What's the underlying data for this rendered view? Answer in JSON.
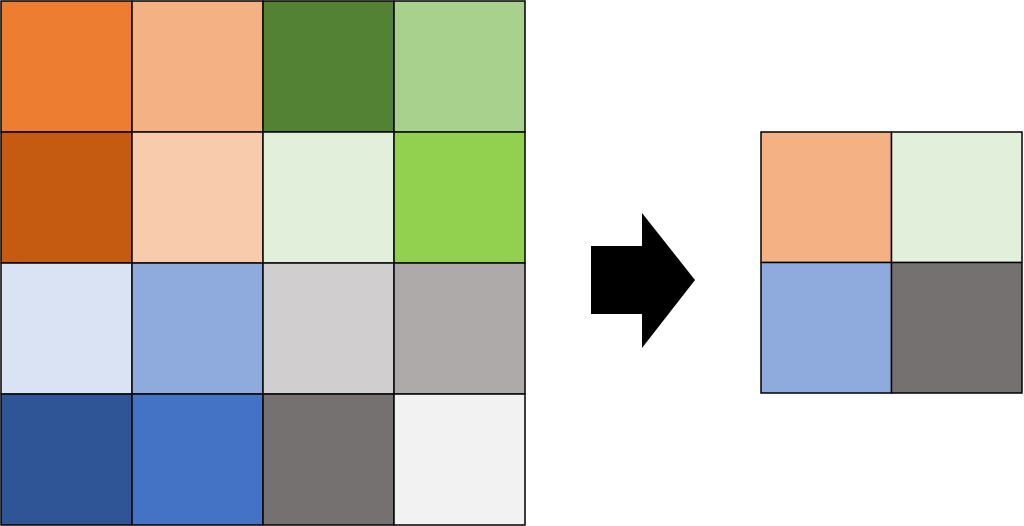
{
  "input_grid": [
    [
      "#ED7D31",
      "#F4B183",
      "#548235",
      "#A9D18E"
    ],
    [
      "#C55A11",
      "#F8CBAD",
      "#E2EFDA",
      "#92D050"
    ],
    [
      "#DAE3F3",
      "#8FAADC",
      "#D0CECE",
      "#AEAAAA"
    ],
    [
      "#2F5597",
      "#4472C4",
      "#767171",
      "#F2F2F2"
    ]
  ],
  "output_grid": [
    [
      "#F4B183",
      "#E2EFDA"
    ],
    [
      "#8FAADC",
      "#767171"
    ]
  ]
}
